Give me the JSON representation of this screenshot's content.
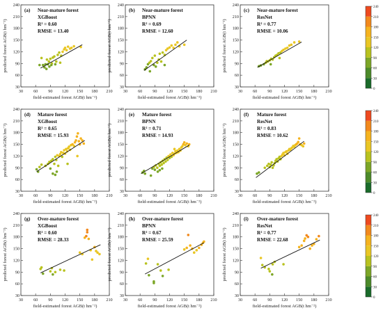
{
  "axis_labels": {
    "x": "field-estimated forest AGB(t hm⁻²)",
    "y": "predicted forest AGB(t hm⁻²)"
  },
  "colorbar": {
    "ticks": [
      0,
      30,
      60,
      90,
      120,
      150,
      180,
      210,
      240
    ],
    "colors": [
      "#1a6b2a",
      "#4c8a2a",
      "#7ca627",
      "#b8c21f",
      "#e9c624",
      "#f5b31f",
      "#f2891d",
      "#ee4a1f",
      "#e01c1c"
    ]
  },
  "chart_data": [
    {
      "type": "scatter",
      "label": "(a)",
      "group": "Near-mature forest",
      "model": "XGBoost",
      "r2": "R² = 0.60",
      "rmse": "RMSE = 13.40",
      "xlim": [
        30,
        210
      ],
      "ylim": [
        30,
        240
      ],
      "xticks": [
        30,
        60,
        90,
        120,
        150,
        180,
        210
      ],
      "yticks": [
        30,
        60,
        90,
        120,
        150,
        180,
        210,
        240
      ],
      "fit": [
        [
          70,
          78
        ],
        [
          155,
          138
        ]
      ],
      "points": [
        [
          68,
          86
        ],
        [
          75,
          86
        ],
        [
          78,
          80
        ],
        [
          80,
          88
        ],
        [
          82,
          76
        ],
        [
          83,
          100
        ],
        [
          85,
          88
        ],
        [
          87,
          95
        ],
        [
          88,
          82
        ],
        [
          90,
          102
        ],
        [
          93,
          90
        ],
        [
          95,
          105
        ],
        [
          98,
          108
        ],
        [
          100,
          88
        ],
        [
          102,
          95
        ],
        [
          105,
          112
        ],
        [
          108,
          118
        ],
        [
          110,
          92
        ],
        [
          112,
          110
        ],
        [
          115,
          120
        ],
        [
          118,
          126
        ],
        [
          120,
          130
        ],
        [
          123,
          124
        ],
        [
          126,
          133
        ],
        [
          130,
          128
        ],
        [
          133,
          130
        ],
        [
          138,
          134
        ],
        [
          152,
          132
        ],
        [
          72,
          104
        ],
        [
          92,
          86
        ]
      ]
    },
    {
      "type": "scatter",
      "label": "(b)",
      "group": "Near-mature forest",
      "model": "BPNN",
      "r2": "R² = 0.69",
      "rmse": "RMSE = 12.60",
      "xlim": [
        30,
        210
      ],
      "ylim": [
        30,
        240
      ],
      "xticks": [
        30,
        60,
        90,
        120,
        150,
        180,
        210
      ],
      "yticks": [
        30,
        60,
        90,
        120,
        150,
        180,
        210,
        240
      ],
      "fit": [
        [
          68,
          72
        ],
        [
          155,
          150
        ]
      ],
      "points": [
        [
          70,
          75
        ],
        [
          73,
          80
        ],
        [
          76,
          88
        ],
        [
          79,
          92
        ],
        [
          82,
          96
        ],
        [
          85,
          104
        ],
        [
          88,
          86
        ],
        [
          90,
          110
        ],
        [
          92,
          82
        ],
        [
          95,
          92
        ],
        [
          98,
          100
        ],
        [
          100,
          115
        ],
        [
          103,
          95
        ],
        [
          106,
          118
        ],
        [
          110,
          112
        ],
        [
          113,
          124
        ],
        [
          116,
          128
        ],
        [
          120,
          131
        ],
        [
          124,
          136
        ],
        [
          128,
          130
        ],
        [
          132,
          138
        ],
        [
          136,
          144
        ],
        [
          140,
          134
        ],
        [
          150,
          138
        ],
        [
          80,
          70
        ],
        [
          110,
          86
        ]
      ]
    },
    {
      "type": "scatter",
      "label": "(c)",
      "group": "Near-mature forest",
      "model": "ResNet",
      "r2": "R² = 0.77",
      "rmse": "RMSE = 10.06",
      "xlim": [
        30,
        210
      ],
      "ylim": [
        30,
        240
      ],
      "xticks": [
        30,
        60,
        90,
        120,
        150,
        180,
        210
      ],
      "yticks": [
        30,
        60,
        90,
        120,
        150,
        180,
        210,
        240
      ],
      "fit": [
        [
          65,
          80
        ],
        [
          155,
          145
        ]
      ],
      "points": [
        [
          68,
          83
        ],
        [
          72,
          85
        ],
        [
          78,
          88
        ],
        [
          82,
          92
        ],
        [
          86,
          95
        ],
        [
          90,
          98
        ],
        [
          93,
          102
        ],
        [
          96,
          100
        ],
        [
          99,
          106
        ],
        [
          102,
          110
        ],
        [
          105,
          112
        ],
        [
          108,
          116
        ],
        [
          112,
          118
        ],
        [
          115,
          122
        ],
        [
          118,
          125
        ],
        [
          122,
          128
        ],
        [
          126,
          130
        ],
        [
          130,
          136
        ],
        [
          134,
          138
        ],
        [
          140,
          144
        ],
        [
          150,
          146
        ],
        [
          92,
          88
        ],
        [
          110,
          104
        ],
        [
          84,
          96
        ]
      ]
    },
    {
      "type": "scatter",
      "label": "(d)",
      "group": "Mature forest",
      "model": "XGBoost",
      "r2": "R² = 0.65",
      "rmse": "RMSE = 15.93",
      "xlim": [
        30,
        210
      ],
      "ylim": [
        30,
        240
      ],
      "xticks": [
        30,
        60,
        90,
        120,
        150,
        180,
        210
      ],
      "yticks": [
        30,
        60,
        90,
        120,
        150,
        180,
        210,
        240
      ],
      "fit": [
        [
          62,
          80
        ],
        [
          160,
          160
        ]
      ],
      "points": [
        [
          62,
          86
        ],
        [
          65,
          80
        ],
        [
          68,
          92
        ],
        [
          72,
          98
        ],
        [
          80,
          95
        ],
        [
          85,
          100
        ],
        [
          88,
          105
        ],
        [
          90,
          88
        ],
        [
          92,
          108
        ],
        [
          95,
          112
        ],
        [
          98,
          100
        ],
        [
          100,
          118
        ],
        [
          102,
          110
        ],
        [
          104,
          122
        ],
        [
          106,
          95
        ],
        [
          108,
          120
        ],
        [
          110,
          125
        ],
        [
          112,
          130
        ],
        [
          114,
          118
        ],
        [
          116,
          128
        ],
        [
          118,
          135
        ],
        [
          120,
          126
        ],
        [
          122,
          138
        ],
        [
          124,
          132
        ],
        [
          126,
          140
        ],
        [
          128,
          144
        ],
        [
          130,
          136
        ],
        [
          132,
          148
        ],
        [
          135,
          150
        ],
        [
          138,
          146
        ],
        [
          140,
          155
        ],
        [
          142,
          160
        ],
        [
          144,
          170
        ],
        [
          146,
          178
        ],
        [
          148,
          158
        ],
        [
          150,
          150
        ],
        [
          152,
          165
        ],
        [
          155,
          160
        ],
        [
          158,
          152
        ],
        [
          95,
          75
        ],
        [
          100,
          72
        ],
        [
          103,
          80
        ],
        [
          125,
          100
        ],
        [
          145,
          120
        ]
      ]
    },
    {
      "type": "scatter",
      "label": "(e)",
      "group": "Mature forest",
      "model": "BPNN",
      "r2": "R² = 0.71",
      "rmse": "RMSE = 14.93",
      "xlim": [
        30,
        210
      ],
      "ylim": [
        30,
        240
      ],
      "xticks": [
        30,
        60,
        90,
        120,
        150,
        180,
        210
      ],
      "yticks": [
        30,
        60,
        90,
        120,
        150,
        180,
        210,
        240
      ],
      "fit": [
        [
          62,
          75
        ],
        [
          160,
          148
        ]
      ],
      "points": [
        [
          65,
          78
        ],
        [
          68,
          82
        ],
        [
          70,
          75
        ],
        [
          82,
          70
        ],
        [
          85,
          88
        ],
        [
          88,
          92
        ],
        [
          90,
          85
        ],
        [
          92,
          96
        ],
        [
          95,
          90
        ],
        [
          98,
          100
        ],
        [
          100,
          95
        ],
        [
          102,
          104
        ],
        [
          104,
          98
        ],
        [
          106,
          108
        ],
        [
          108,
          102
        ],
        [
          110,
          112
        ],
        [
          112,
          106
        ],
        [
          114,
          116
        ],
        [
          116,
          110
        ],
        [
          118,
          120
        ],
        [
          120,
          115
        ],
        [
          122,
          124
        ],
        [
          124,
          118
        ],
        [
          126,
          128
        ],
        [
          128,
          122
        ],
        [
          130,
          126
        ],
        [
          132,
          132
        ],
        [
          134,
          128
        ],
        [
          136,
          134
        ],
        [
          138,
          130
        ],
        [
          140,
          138
        ],
        [
          142,
          134
        ],
        [
          144,
          142
        ],
        [
          146,
          145
        ],
        [
          148,
          150
        ],
        [
          150,
          155
        ],
        [
          152,
          148
        ],
        [
          155,
          152
        ],
        [
          158,
          145
        ],
        [
          160,
          150
        ],
        [
          96,
          80
        ],
        [
          100,
          84
        ],
        [
          105,
          88
        ],
        [
          130,
          138
        ]
      ]
    },
    {
      "type": "scatter",
      "label": "(f)",
      "group": "Mature forest",
      "model": "ResNet",
      "r2": "R² = 0.83",
      "rmse": "RMSE = 10.62",
      "xlim": [
        30,
        210
      ],
      "ylim": [
        30,
        240
      ],
      "xticks": [
        30,
        60,
        90,
        120,
        150,
        180,
        210
      ],
      "yticks": [
        30,
        60,
        90,
        120,
        150,
        180,
        210,
        240
      ],
      "fit": [
        [
          62,
          65
        ],
        [
          160,
          158
        ]
      ],
      "points": [
        [
          64,
          75
        ],
        [
          68,
          78
        ],
        [
          80,
          90
        ],
        [
          85,
          95
        ],
        [
          88,
          100
        ],
        [
          90,
          92
        ],
        [
          92,
          98
        ],
        [
          94,
          104
        ],
        [
          96,
          90
        ],
        [
          98,
          96
        ],
        [
          100,
          102
        ],
        [
          102,
          108
        ],
        [
          104,
          112
        ],
        [
          106,
          106
        ],
        [
          108,
          114
        ],
        [
          110,
          118
        ],
        [
          112,
          112
        ],
        [
          114,
          120
        ],
        [
          116,
          124
        ],
        [
          118,
          128
        ],
        [
          120,
          122
        ],
        [
          122,
          130
        ],
        [
          124,
          132
        ],
        [
          126,
          126
        ],
        [
          128,
          134
        ],
        [
          130,
          138
        ],
        [
          132,
          136
        ],
        [
          134,
          140
        ],
        [
          136,
          142
        ],
        [
          138,
          146
        ],
        [
          140,
          144
        ],
        [
          142,
          148
        ],
        [
          144,
          150
        ],
        [
          146,
          152
        ],
        [
          148,
          156
        ],
        [
          150,
          165
        ],
        [
          152,
          150
        ],
        [
          155,
          148
        ],
        [
          158,
          145
        ],
        [
          160,
          152
        ]
      ]
    },
    {
      "type": "scatter",
      "label": "(g)",
      "group": "Over-mature forest",
      "model": "XGBoost",
      "r2": "R² = 0.60",
      "rmse": "RMSE = 28.33",
      "xlim": [
        30,
        210
      ],
      "ylim": [
        30,
        240
      ],
      "xticks": [
        30,
        60,
        90,
        120,
        150,
        180,
        210
      ],
      "yticks": [
        30,
        60,
        90,
        120,
        150,
        180,
        210,
        240
      ],
      "fit": [
        [
          70,
          88
        ],
        [
          192,
          160
        ]
      ],
      "points": [
        [
          70,
          98
        ],
        [
          72,
          102
        ],
        [
          75,
          86
        ],
        [
          90,
          92
        ],
        [
          93,
          100
        ],
        [
          95,
          84
        ],
        [
          100,
          90
        ],
        [
          110,
          96
        ],
        [
          118,
          94
        ],
        [
          150,
          140
        ],
        [
          155,
          136
        ],
        [
          160,
          178
        ],
        [
          163,
          182
        ],
        [
          165,
          192
        ],
        [
          168,
          175
        ],
        [
          172,
          146
        ],
        [
          175,
          122
        ],
        [
          180,
          154
        ],
        [
          183,
          144
        ],
        [
          186,
          140
        ],
        [
          190,
          136
        ],
        [
          165,
          198
        ]
      ]
    },
    {
      "type": "scatter",
      "label": "(h)",
      "group": "Over-mature forest",
      "model": "BPNN",
      "r2": "R² = 0.67",
      "rmse": "RMSE = 25.59",
      "xlim": [
        30,
        210
      ],
      "ylim": [
        30,
        240
      ],
      "xticks": [
        30,
        60,
        90,
        120,
        150,
        180,
        210
      ],
      "yticks": [
        30,
        60,
        90,
        120,
        150,
        180,
        210,
        240
      ],
      "fit": [
        [
          70,
          85
        ],
        [
          190,
          165
        ]
      ],
      "points": [
        [
          72,
          112
        ],
        [
          76,
          124
        ],
        [
          78,
          82
        ],
        [
          88,
          66
        ],
        [
          88,
          62
        ],
        [
          96,
          110
        ],
        [
          102,
          94
        ],
        [
          118,
          96
        ],
        [
          150,
          148
        ],
        [
          155,
          152
        ],
        [
          158,
          185
        ],
        [
          162,
          158
        ],
        [
          166,
          150
        ],
        [
          170,
          140
        ],
        [
          175,
          146
        ],
        [
          180,
          152
        ],
        [
          185,
          160
        ],
        [
          188,
          165
        ],
        [
          190,
          168
        ],
        [
          106,
          80
        ]
      ]
    },
    {
      "type": "scatter",
      "label": "(i)",
      "group": "Over-mature forest",
      "model": "ResNet",
      "r2": "R² = 0.77",
      "rmse": "RMSE = 22.68",
      "xlim": [
        30,
        210
      ],
      "ylim": [
        30,
        240
      ],
      "xticks": [
        30,
        60,
        90,
        120,
        150,
        180,
        210
      ],
      "yticks": [
        30,
        60,
        90,
        120,
        150,
        180,
        210,
        240
      ],
      "fit": [
        [
          72,
          100
        ],
        [
          192,
          172
        ]
      ],
      "points": [
        [
          72,
          126
        ],
        [
          75,
          108
        ],
        [
          80,
          102
        ],
        [
          88,
          98
        ],
        [
          90,
          92
        ],
        [
          96,
          110
        ],
        [
          100,
          116
        ],
        [
          118,
          110
        ],
        [
          150,
          154
        ],
        [
          155,
          158
        ],
        [
          160,
          170
        ],
        [
          162,
          176
        ],
        [
          165,
          184
        ],
        [
          168,
          180
        ],
        [
          172,
          150
        ],
        [
          176,
          158
        ],
        [
          180,
          162
        ],
        [
          185,
          174
        ],
        [
          190,
          182
        ],
        [
          95,
          84
        ]
      ]
    }
  ]
}
